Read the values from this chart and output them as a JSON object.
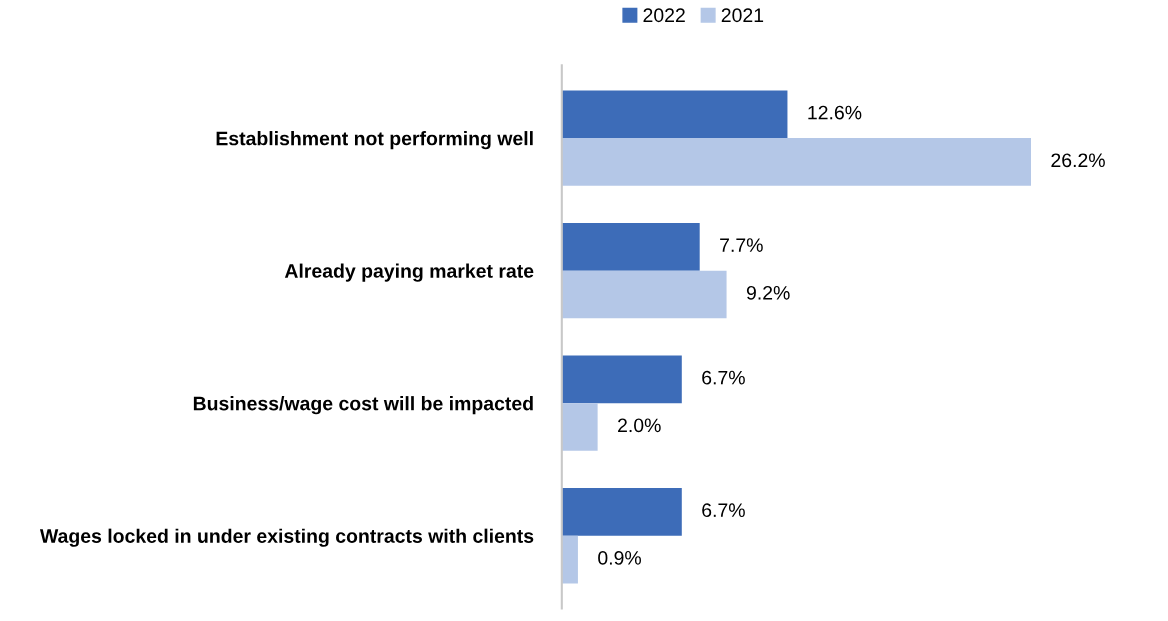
{
  "chart_data": {
    "type": "bar",
    "orientation": "horizontal",
    "categories": [
      "Establishment not performing well",
      "Already paying market rate",
      "Business/wage cost will be impacted",
      "Wages locked in under existing contracts with clients"
    ],
    "series": [
      {
        "name": "2022",
        "color": "#3d6cb8",
        "values": [
          12.6,
          7.7,
          6.7,
          6.7
        ],
        "value_labels": [
          "12.6%",
          "7.7%",
          "6.7%",
          "6.7%"
        ]
      },
      {
        "name": "2021",
        "color": "#b4c7e7",
        "values": [
          26.2,
          9.2,
          2.0,
          0.9
        ],
        "value_labels": [
          "26.2%",
          "9.2%",
          "2.0%",
          "0.9%"
        ]
      }
    ],
    "legend": "top",
    "grid": false
  }
}
